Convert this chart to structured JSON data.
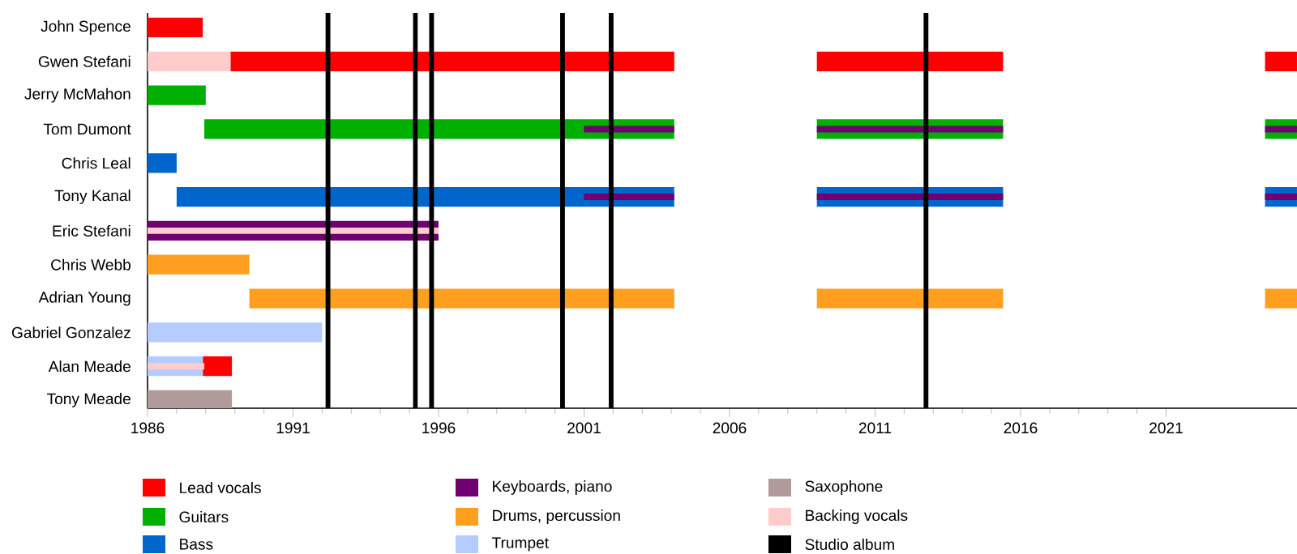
{
  "chart_data": {
    "type": "bar",
    "orientation": "horizontal",
    "legend": "bottom",
    "grid": false,
    "categories": [
      "John Spence",
      "Gwen Stefani",
      "Jerry McMahon",
      "Tom Dumont",
      "Chris Leal",
      "Tony Kanal",
      "Eric Stefani",
      "Chris Webb",
      "Adrian Young",
      "Gabriel Gonzalez",
      "Alan Meade",
      "Tony Meade"
    ],
    "xlim": [
      1986,
      2025.5
    ],
    "xticks": [
      1986,
      1991,
      1996,
      2001,
      2006,
      2011,
      2016,
      2021
    ],
    "series": [
      {
        "name": "Lead vocals",
        "color": "#ff0000",
        "base": [
          1986,
          1988.85,
          null,
          null,
          null,
          null,
          null,
          null,
          null,
          null,
          1987.9,
          null
        ],
        "values": [
          1.9,
          15.25,
          null,
          null,
          null,
          null,
          null,
          null,
          null,
          null,
          1.0,
          null
        ]
      },
      {
        "name": "Guitars",
        "color": "#00b000",
        "base": [
          null,
          null,
          1986,
          1987.95,
          null,
          null,
          null,
          null,
          null,
          null,
          null,
          null
        ],
        "values": [
          null,
          null,
          2.0,
          16.15,
          null,
          null,
          null,
          null,
          null,
          null,
          null,
          null
        ]
      },
      {
        "name": "Bass",
        "color": "#0066cc",
        "base": [
          null,
          null,
          null,
          null,
          1986,
          1987,
          null,
          null,
          null,
          null,
          null,
          null
        ],
        "values": [
          null,
          null,
          null,
          null,
          1.0,
          17.1,
          null,
          null,
          null,
          null,
          null,
          null
        ]
      },
      {
        "name": "Keyboards, piano",
        "color": "#700070",
        "base": [
          null,
          null,
          null,
          2001,
          null,
          2001,
          1986,
          null,
          null,
          null,
          null,
          null
        ],
        "values": [
          null,
          null,
          null,
          3.1,
          null,
          3.1,
          10.0,
          null,
          null,
          null,
          null,
          null
        ]
      },
      {
        "name": "Drums, percussion",
        "color": "#ff9f20",
        "base": [
          null,
          null,
          null,
          null,
          null,
          null,
          null,
          1986,
          1989.5,
          null,
          null,
          null
        ],
        "values": [
          null,
          null,
          null,
          null,
          null,
          null,
          null,
          3.5,
          14.6,
          null,
          null,
          null
        ]
      },
      {
        "name": "Trumpet",
        "color": "#b4ccff",
        "base": [
          null,
          null,
          null,
          null,
          null,
          null,
          null,
          null,
          null,
          1986,
          1986,
          null
        ],
        "values": [
          null,
          null,
          null,
          null,
          null,
          null,
          null,
          null,
          null,
          6.0,
          1.9,
          null
        ]
      },
      {
        "name": "Saxophone",
        "color": "#b09a9a",
        "base": [
          null,
          null,
          null,
          null,
          null,
          null,
          null,
          null,
          null,
          null,
          null,
          1986
        ],
        "values": [
          null,
          null,
          null,
          null,
          null,
          null,
          null,
          null,
          null,
          null,
          null,
          2.9
        ]
      },
      {
        "name": "Backing vocals",
        "color": "#ffcccc",
        "base": [
          null,
          1986,
          null,
          null,
          null,
          null,
          1986,
          null,
          null,
          null,
          1986,
          null
        ],
        "values": [
          null,
          2.85,
          null,
          null,
          null,
          null,
          10.0,
          null,
          null,
          null,
          1.95,
          null
        ]
      },
      {
        "color": "#ff0000",
        "base": [
          null,
          2009,
          null,
          null,
          null,
          null,
          null,
          null,
          null,
          null,
          null,
          null
        ],
        "values": [
          null,
          6.4,
          null,
          null,
          null,
          null,
          null,
          null,
          null,
          null,
          null,
          null
        ]
      },
      {
        "color": "#ff0000",
        "base": [
          null,
          2024.4,
          null,
          null,
          null,
          null,
          null,
          null,
          null,
          null,
          null,
          null
        ],
        "values": [
          null,
          1.1,
          null,
          null,
          null,
          null,
          null,
          null,
          null,
          null,
          null,
          null
        ]
      },
      {
        "color": "#00b000",
        "base": [
          null,
          null,
          null,
          2009,
          null,
          null,
          null,
          null,
          null,
          null,
          null,
          null
        ],
        "values": [
          null,
          null,
          null,
          6.4,
          null,
          null,
          null,
          null,
          null,
          null,
          null,
          null
        ]
      },
      {
        "color": "#00b000",
        "base": [
          null,
          null,
          null,
          2024.4,
          null,
          null,
          null,
          null,
          null,
          null,
          null,
          null
        ],
        "values": [
          null,
          null,
          null,
          1.1,
          null,
          null,
          null,
          null,
          null,
          null,
          null,
          null
        ]
      },
      {
        "color": "#0066cc",
        "base": [
          null,
          null,
          null,
          null,
          null,
          2009,
          null,
          null,
          null,
          null,
          null,
          null
        ],
        "values": [
          null,
          null,
          null,
          null,
          null,
          6.4,
          null,
          null,
          null,
          null,
          null,
          null
        ]
      },
      {
        "color": "#0066cc",
        "base": [
          null,
          null,
          null,
          null,
          null,
          2024.4,
          null,
          null,
          null,
          null,
          null,
          null
        ],
        "values": [
          null,
          null,
          null,
          null,
          null,
          1.1,
          null,
          null,
          null,
          null,
          null,
          null
        ]
      },
      {
        "color": "#700070",
        "base": [
          null,
          null,
          null,
          2009,
          null,
          2009,
          null,
          null,
          null,
          null,
          null,
          null
        ],
        "values": [
          null,
          null,
          null,
          6.4,
          null,
          6.4,
          null,
          null,
          null,
          null,
          null,
          null
        ]
      },
      {
        "color": "#700070",
        "base": [
          null,
          null,
          null,
          2024.4,
          null,
          2024.4,
          null,
          null,
          null,
          null,
          null,
          null
        ],
        "values": [
          null,
          null,
          null,
          1.1,
          null,
          1.1,
          null,
          null,
          null,
          null,
          null,
          null
        ]
      },
      {
        "color": "#ff9f20",
        "base": [
          null,
          null,
          null,
          null,
          null,
          null,
          null,
          null,
          2009,
          null,
          null,
          null
        ],
        "values": [
          null,
          null,
          null,
          null,
          null,
          null,
          null,
          null,
          6.4,
          null,
          null,
          null
        ]
      },
      {
        "color": "#ff9f20",
        "base": [
          null,
          null,
          null,
          null,
          null,
          null,
          null,
          null,
          2024.4,
          null,
          null,
          null
        ],
        "values": [
          null,
          null,
          null,
          null,
          null,
          null,
          null,
          null,
          1.1,
          null,
          null,
          null
        ]
      }
    ],
    "ref_lines": [
      {
        "axis": "x",
        "value": 1992.2,
        "label": "Studio album",
        "color": "#000000"
      },
      {
        "axis": "x",
        "value": 1995.2,
        "color": "#000000"
      },
      {
        "axis": "x",
        "value": 1995.76,
        "color": "#000000"
      },
      {
        "axis": "x",
        "value": 2000.26,
        "color": "#000000"
      },
      {
        "axis": "x",
        "value": 2001.93,
        "color": "#000000"
      },
      {
        "axis": "x",
        "value": 2012.75,
        "color": "#000000"
      }
    ]
  }
}
